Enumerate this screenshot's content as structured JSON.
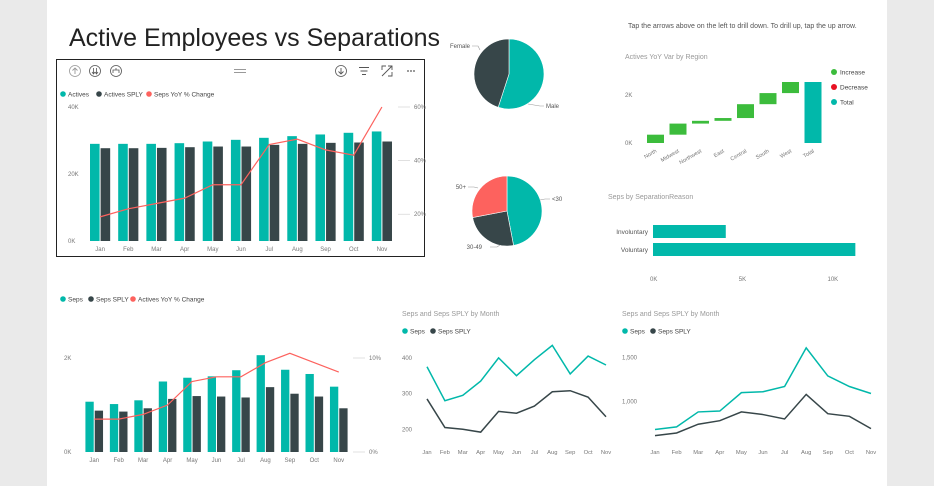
{
  "page": {
    "title": "Active Employees vs Separations",
    "hint": "Tap the arrows above on the left to drill down. To drill up, tap the up arrow."
  },
  "colors": {
    "teal": "#01B8AA",
    "dark": "#374649",
    "red": "#FD625E",
    "green": "#3CBC3C",
    "decrease": "#E81123",
    "axis": "#777777",
    "grid": "#e3e3e3"
  },
  "toolbar": {
    "icons": [
      "drill-up-icon",
      "drill-down-all-icon",
      "expand-hierarchy-icon",
      "drag-handle-icon",
      "drill-mode-icon",
      "filter-icon",
      "focus-mode-icon",
      "more-options-icon"
    ]
  },
  "chart_data": [
    {
      "id": "actives",
      "type": "bar",
      "categories": [
        "Jan",
        "Feb",
        "Mar",
        "Apr",
        "May",
        "Jun",
        "Jul",
        "Aug",
        "Sep",
        "Oct",
        "Nov"
      ],
      "series": [
        {
          "name": "Actives",
          "values": [
            29000,
            29000,
            29000,
            29200,
            29700,
            30200,
            30800,
            31300,
            31800,
            32300,
            32700
          ]
        },
        {
          "name": "Actives SPLY",
          "values": [
            27700,
            27700,
            27800,
            28000,
            28200,
            28200,
            28700,
            29000,
            29300,
            29400,
            29700
          ]
        },
        {
          "name": "Seps YoY % Change",
          "axis": "right",
          "values": [
            0.19,
            0.22,
            0.24,
            0.26,
            0.31,
            0.31,
            0.46,
            0.48,
            0.44,
            0.42,
            0.6
          ]
        }
      ],
      "yticks": [
        "0K",
        "20K",
        "40K"
      ],
      "ylim": [
        0,
        40000
      ],
      "y2ticks": [
        "20%",
        "40%",
        "60%"
      ],
      "y2lim": [
        0.1,
        0.6
      ]
    },
    {
      "id": "seps",
      "type": "bar",
      "categories": [
        "Jan",
        "Feb",
        "Mar",
        "Apr",
        "May",
        "Jun",
        "Jul",
        "Aug",
        "Sep",
        "Oct",
        "Nov"
      ],
      "series": [
        {
          "name": "Seps",
          "values": [
            1070,
            1020,
            1100,
            1500,
            1580,
            1610,
            1740,
            2060,
            1750,
            1660,
            1390
          ]
        },
        {
          "name": "Seps SPLY",
          "values": [
            880,
            860,
            930,
            1130,
            1190,
            1180,
            1160,
            1380,
            1240,
            1180,
            930
          ]
        },
        {
          "name": "Actives YoY % Change",
          "axis": "right",
          "values": [
            0.035,
            0.035,
            0.04,
            0.05,
            0.075,
            0.08,
            0.08,
            0.095,
            0.105,
            0.095,
            0.085
          ]
        }
      ],
      "yticks": [
        "0K",
        "2K"
      ],
      "ylim": [
        0,
        2000
      ],
      "y2ticks": [
        "0%",
        "10%"
      ],
      "y2lim": [
        0,
        0.1
      ]
    },
    {
      "id": "gender",
      "type": "pie",
      "labels": [
        "Male",
        "Female"
      ],
      "values": [
        55,
        45
      ]
    },
    {
      "id": "age",
      "type": "pie",
      "labels": [
        "<30",
        "30-49",
        "50+"
      ],
      "values": [
        47,
        25,
        28
      ]
    },
    {
      "id": "yoy-region",
      "type": "bar",
      "title": "Actives YoY Var by Region",
      "categories": [
        "North",
        "Midwest",
        "Northwest",
        "East",
        "Central",
        "South",
        "West",
        "Total"
      ],
      "values": [
        300,
        400,
        100,
        100,
        500,
        400,
        400,
        2200
      ],
      "legend": [
        "Increase",
        "Decrease",
        "Total"
      ],
      "yticks": [
        "0K",
        "2K"
      ],
      "ylim": [
        0,
        2200
      ]
    },
    {
      "id": "sep-reason",
      "type": "bar",
      "title": "Seps by SeparationReason",
      "categories": [
        "Involuntary",
        "Voluntary"
      ],
      "values": [
        4100,
        11400
      ],
      "xticks": [
        "0K",
        "5K",
        "10K"
      ],
      "xlim": [
        0,
        12000
      ]
    },
    {
      "id": "seps-month",
      "type": "line",
      "title": "Seps and Seps SPLY by Month",
      "categories": [
        "Jan",
        "Feb",
        "Mar",
        "Apr",
        "May",
        "Jun",
        "Jul",
        "Aug",
        "Sep",
        "Oct",
        "Nov"
      ],
      "series": [
        {
          "name": "Seps",
          "values": [
            375,
            280,
            295,
            335,
            400,
            350,
            395,
            435,
            355,
            405,
            380
          ]
        },
        {
          "name": "Seps SPLY",
          "values": [
            285,
            205,
            200,
            192,
            250,
            245,
            265,
            305,
            308,
            290,
            235
          ]
        }
      ],
      "yticks": [
        "200",
        "300",
        "400"
      ],
      "ylim": [
        170,
        450
      ]
    },
    {
      "id": "seps-sply-month",
      "type": "line",
      "title": "Seps and Seps SPLY by Month",
      "categories": [
        "Jan",
        "Feb",
        "Mar",
        "Apr",
        "May",
        "Jun",
        "Jul",
        "Aug",
        "Sep",
        "Oct",
        "Nov"
      ],
      "series": [
        {
          "name": "Seps",
          "values": [
            680,
            710,
            880,
            890,
            1100,
            1110,
            1170,
            1610,
            1290,
            1170,
            1090
          ]
        },
        {
          "name": "Seps SPLY",
          "values": [
            610,
            640,
            740,
            780,
            880,
            850,
            800,
            1080,
            860,
            830,
            690
          ]
        }
      ],
      "yticks": [
        "1,000",
        "1,500"
      ],
      "ylim": [
        560,
        1700
      ]
    }
  ]
}
